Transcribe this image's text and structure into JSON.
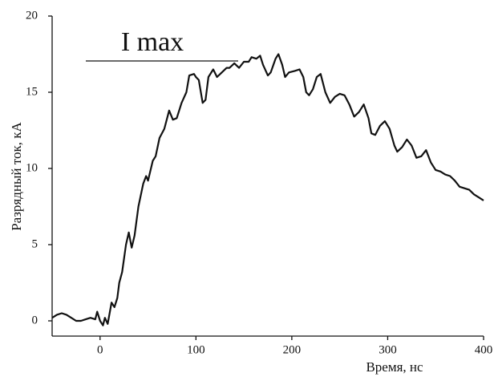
{
  "chart_data": {
    "type": "line",
    "annotation": "I max",
    "xlabel": "Время, нс",
    "ylabel": "Разрядный ток, кА",
    "xlim": [
      -50,
      400
    ],
    "ylim": [
      -1,
      20
    ],
    "xticks": [
      0,
      100,
      200,
      300,
      400
    ],
    "yticks": [
      0,
      5,
      10,
      15,
      20
    ],
    "color": "#111111",
    "x": [
      -50,
      -45,
      -40,
      -35,
      -30,
      -25,
      -20,
      -15,
      -10,
      -5,
      -3,
      0,
      3,
      5,
      8,
      10,
      12,
      15,
      18,
      20,
      23,
      27,
      30,
      33,
      36,
      40,
      45,
      48,
      50,
      55,
      58,
      62,
      67,
      72,
      76,
      80,
      85,
      90,
      93,
      98,
      100,
      103,
      107,
      110,
      113,
      118,
      122,
      127,
      132,
      135,
      140,
      145,
      150,
      155,
      158,
      163,
      167,
      170,
      175,
      178,
      183,
      186,
      190,
      193,
      197,
      203,
      208,
      212,
      215,
      218,
      222,
      226,
      230,
      235,
      240,
      245,
      250,
      255,
      260,
      265,
      270,
      275,
      280,
      283,
      287,
      292,
      297,
      302,
      307,
      310,
      315,
      320,
      325,
      330,
      335,
      340,
      345,
      350,
      355,
      360,
      365,
      370,
      375,
      380,
      385,
      390,
      395,
      400
    ],
    "values": [
      0.2,
      0.4,
      0.5,
      0.4,
      0.2,
      0.0,
      0.0,
      0.1,
      0.2,
      0.1,
      0.6,
      0.0,
      -0.3,
      0.2,
      -0.2,
      0.5,
      1.2,
      0.9,
      1.5,
      2.5,
      3.2,
      5.0,
      5.8,
      4.8,
      5.6,
      7.5,
      9.0,
      9.5,
      9.2,
      10.5,
      10.8,
      12.0,
      12.6,
      13.8,
      13.2,
      13.3,
      14.3,
      15.0,
      16.1,
      16.2,
      16.0,
      15.8,
      14.3,
      14.5,
      16.0,
      16.5,
      16.0,
      16.3,
      16.6,
      16.6,
      16.9,
      16.6,
      17.0,
      17.0,
      17.3,
      17.2,
      17.4,
      16.8,
      16.1,
      16.3,
      17.2,
      17.5,
      16.8,
      16.0,
      16.3,
      16.4,
      16.5,
      16.0,
      15.0,
      14.8,
      15.2,
      16.0,
      16.2,
      15.0,
      14.3,
      14.7,
      14.9,
      14.8,
      14.2,
      13.4,
      13.7,
      14.2,
      13.3,
      12.3,
      12.2,
      12.8,
      13.1,
      12.6,
      11.5,
      11.1,
      11.4,
      11.9,
      11.5,
      10.7,
      10.8,
      11.2,
      10.4,
      9.9,
      9.8,
      9.6,
      9.5,
      9.2,
      8.8,
      8.7,
      8.6,
      8.3,
      8.1,
      7.9
    ]
  }
}
